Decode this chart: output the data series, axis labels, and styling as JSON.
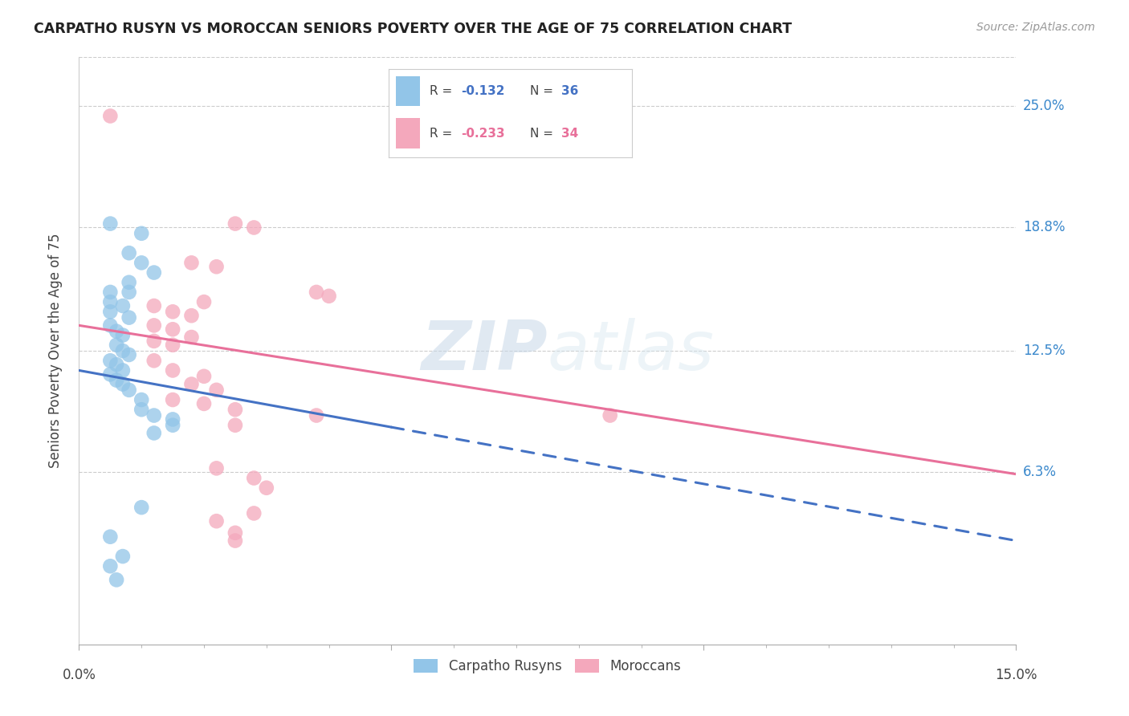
{
  "title": "CARPATHO RUSYN VS MOROCCAN SENIORS POVERTY OVER THE AGE OF 75 CORRELATION CHART",
  "source": "Source: ZipAtlas.com",
  "ylabel": "Seniors Poverty Over the Age of 75",
  "ytick_labels": [
    "25.0%",
    "18.8%",
    "12.5%",
    "6.3%"
  ],
  "ytick_values": [
    0.25,
    0.188,
    0.125,
    0.063
  ],
  "xmin": 0.0,
  "xmax": 0.15,
  "ymin": -0.025,
  "ymax": 0.275,
  "legend_label1": "Carpatho Rusyns",
  "legend_label2": "Moroccans",
  "watermark_zip": "ZIP",
  "watermark_atlas": "atlas",
  "blue_color": "#92C5E8",
  "pink_color": "#F4A8BC",
  "blue_line_color": "#4472C4",
  "pink_line_color": "#E8709A",
  "blue_scatter": [
    [
      0.005,
      0.19
    ],
    [
      0.01,
      0.185
    ],
    [
      0.008,
      0.175
    ],
    [
      0.01,
      0.17
    ],
    [
      0.008,
      0.16
    ],
    [
      0.012,
      0.165
    ],
    [
      0.005,
      0.155
    ],
    [
      0.008,
      0.155
    ],
    [
      0.005,
      0.15
    ],
    [
      0.007,
      0.148
    ],
    [
      0.005,
      0.145
    ],
    [
      0.008,
      0.142
    ],
    [
      0.005,
      0.138
    ],
    [
      0.006,
      0.135
    ],
    [
      0.007,
      0.133
    ],
    [
      0.006,
      0.128
    ],
    [
      0.007,
      0.125
    ],
    [
      0.008,
      0.123
    ],
    [
      0.005,
      0.12
    ],
    [
      0.006,
      0.118
    ],
    [
      0.007,
      0.115
    ],
    [
      0.005,
      0.113
    ],
    [
      0.006,
      0.11
    ],
    [
      0.007,
      0.108
    ],
    [
      0.008,
      0.105
    ],
    [
      0.01,
      0.1
    ],
    [
      0.01,
      0.095
    ],
    [
      0.012,
      0.092
    ],
    [
      0.015,
      0.09
    ],
    [
      0.015,
      0.087
    ],
    [
      0.012,
      0.083
    ],
    [
      0.01,
      0.045
    ],
    [
      0.005,
      0.03
    ],
    [
      0.007,
      0.02
    ],
    [
      0.005,
      0.015
    ],
    [
      0.006,
      0.008
    ]
  ],
  "pink_scatter": [
    [
      0.005,
      0.245
    ],
    [
      0.025,
      0.19
    ],
    [
      0.028,
      0.188
    ],
    [
      0.018,
      0.17
    ],
    [
      0.022,
      0.168
    ],
    [
      0.038,
      0.155
    ],
    [
      0.04,
      0.153
    ],
    [
      0.02,
      0.15
    ],
    [
      0.012,
      0.148
    ],
    [
      0.015,
      0.145
    ],
    [
      0.018,
      0.143
    ],
    [
      0.012,
      0.138
    ],
    [
      0.015,
      0.136
    ],
    [
      0.018,
      0.132
    ],
    [
      0.012,
      0.13
    ],
    [
      0.015,
      0.128
    ],
    [
      0.012,
      0.12
    ],
    [
      0.015,
      0.115
    ],
    [
      0.02,
      0.112
    ],
    [
      0.018,
      0.108
    ],
    [
      0.022,
      0.105
    ],
    [
      0.015,
      0.1
    ],
    [
      0.02,
      0.098
    ],
    [
      0.025,
      0.095
    ],
    [
      0.038,
      0.092
    ],
    [
      0.025,
      0.087
    ],
    [
      0.022,
      0.065
    ],
    [
      0.028,
      0.06
    ],
    [
      0.03,
      0.055
    ],
    [
      0.028,
      0.042
    ],
    [
      0.022,
      0.038
    ],
    [
      0.085,
      0.092
    ],
    [
      0.025,
      0.032
    ],
    [
      0.025,
      0.028
    ]
  ],
  "blue_trendline_solid": [
    [
      0.0,
      0.115
    ],
    [
      0.05,
      0.086
    ]
  ],
  "blue_trendline_dashed": [
    [
      0.05,
      0.086
    ],
    [
      0.15,
      0.028
    ]
  ],
  "pink_trendline": [
    [
      0.0,
      0.138
    ],
    [
      0.15,
      0.062
    ]
  ]
}
